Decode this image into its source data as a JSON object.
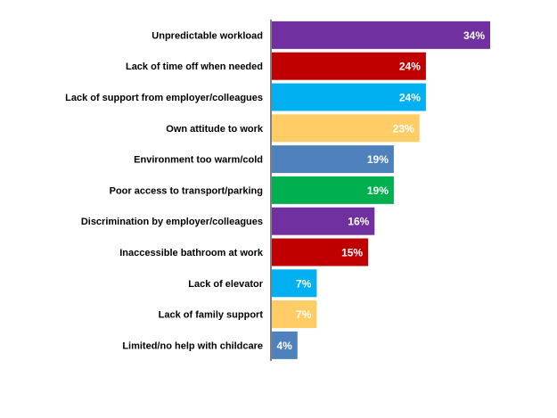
{
  "chart_data": {
    "type": "bar",
    "orientation": "horizontal",
    "categories": [
      "Unpredictable workload",
      "Lack of time off when needed",
      "Lack of support from employer/colleagues",
      "Own attitude to work",
      "Environment too warm/cold",
      "Poor access to transport/parking",
      "Discrimination by employer/colleagues",
      "Inaccessible bathroom at work",
      "Lack of elevator",
      "Lack of family support",
      "Limited/no help with childcare"
    ],
    "values": [
      34,
      24,
      24,
      23,
      19,
      19,
      16,
      15,
      7,
      7,
      4
    ],
    "value_labels": [
      "34%",
      "24%",
      "24%",
      "23%",
      "19%",
      "19%",
      "16%",
      "15%",
      "7%",
      "7%",
      "4%"
    ],
    "colors": [
      "#7030a0",
      "#c00000",
      "#00b0f0",
      "#ffcc66",
      "#4f81bd",
      "#00b050",
      "#7030a0",
      "#c00000",
      "#00b0f0",
      "#ffcc66",
      "#4f81bd"
    ],
    "title": "",
    "xlabel": "",
    "ylabel": "",
    "xlim": [
      0,
      34
    ],
    "grid": false,
    "legend": "none"
  }
}
